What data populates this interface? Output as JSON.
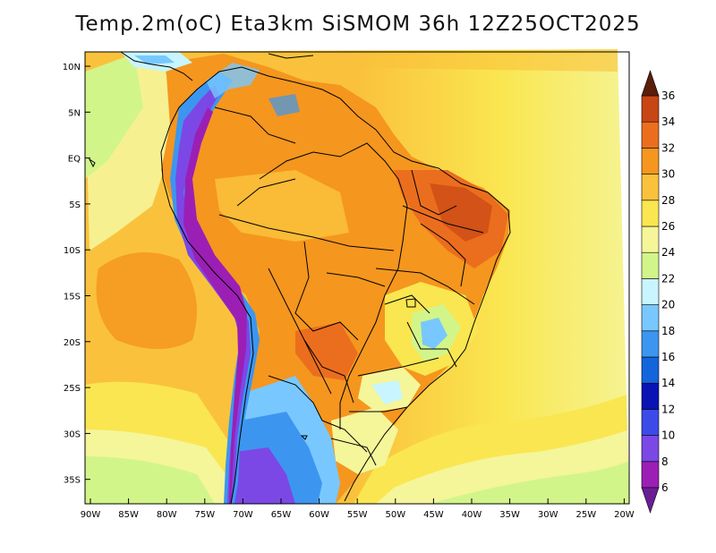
{
  "title": "Temp.2m(oC) Eta3km SiSMOM 36h 12Z25OCT2025",
  "map": {
    "variable": "2 m air temperature",
    "units": "oC",
    "lat_labels": [
      "10N",
      "5N",
      "EQ",
      "5S",
      "10S",
      "15S",
      "20S",
      "25S",
      "30S",
      "35S"
    ],
    "lon_labels": [
      "90W",
      "85W",
      "80W",
      "75W",
      "70W",
      "65W",
      "60W",
      "55W",
      "50W",
      "45W",
      "40W",
      "35W",
      "30W",
      "25W",
      "20W"
    ]
  },
  "colorbar": {
    "levels": [
      6,
      8,
      10,
      12,
      14,
      16,
      18,
      20,
      22,
      24,
      26,
      28,
      30,
      32,
      34,
      36
    ],
    "labels": [
      "6",
      "8",
      "10",
      "12",
      "14",
      "16",
      "18",
      "20",
      "22",
      "24",
      "26",
      "28",
      "30",
      "32",
      "34",
      "36"
    ],
    "colors": [
      "#9b1fb5",
      "#7b48e6",
      "#3c4be8",
      "#0a14b4",
      "#1464dc",
      "#3c96f0",
      "#78c8ff",
      "#c8f5ff",
      "#d2f58a",
      "#f5f59a",
      "#fae650",
      "#fac23c",
      "#f5961e",
      "#eb6e1e",
      "#c84614",
      "#963214",
      "#5a1e0a"
    ],
    "under_color": "#6a1e96",
    "over_color": "#5a1e0a"
  }
}
